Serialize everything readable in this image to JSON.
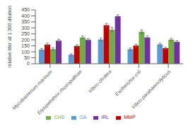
{
  "chart_data": {
    "type": "bar",
    "categories": [
      "Mycobacterium marinum",
      "Erysipelothrix rhusiopathiae",
      "Vibrio cholera",
      "Escherichia coli",
      "Vibrio parahaemolyticus"
    ],
    "series": [
      {
        "name": "GA",
        "color": "#5b9bd5",
        "values": [
          118,
          75,
          203,
          122,
          162
        ],
        "errors": [
          10,
          8,
          12,
          10,
          10
        ]
      },
      {
        "name": "MMP",
        "color": "#c00000",
        "values": [
          160,
          148,
          322,
          152,
          130
        ],
        "errors": [
          12,
          10,
          15,
          12,
          8
        ]
      },
      {
        "name": "CHS",
        "color": "#70ad47",
        "values": [
          122,
          220,
          285,
          268,
          202
        ],
        "errors": [
          10,
          12,
          18,
          15,
          10
        ]
      },
      {
        "name": "IRL",
        "color": "#7030a0",
        "values": [
          193,
          200,
          397,
          220,
          183
        ],
        "errors": [
          12,
          10,
          12,
          12,
          10
        ]
      }
    ],
    "ylabel": "relative titer at 1:300 dilution",
    "ylim": [
      0,
      450
    ],
    "yticks": [
      0,
      50,
      100,
      150,
      200,
      250,
      300,
      350,
      400,
      450
    ],
    "grid": false,
    "legend": "bottom"
  }
}
